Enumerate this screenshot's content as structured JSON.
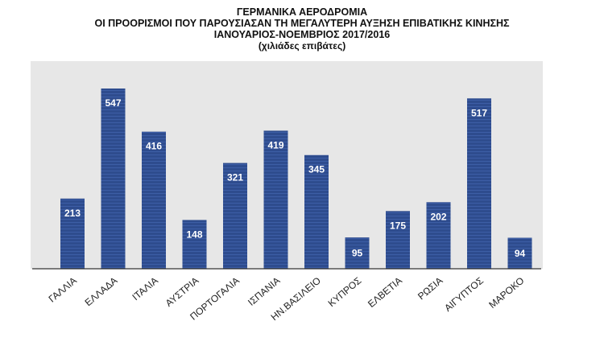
{
  "title": {
    "line1": "ΓΕΡΜΑΝΙΚΑ ΑΕΡΟΔΡΟΜΙΑ",
    "line2": "ΟΙ ΠΡΟΟΡΙΣΜΟΙ ΠΟΥ ΠΑΡΟΥΣΙΑΣΑΝ ΤΗ ΜΕΓΑΛΥΤΕΡΗ ΑΥΞΗΣΗ ΕΠΙΒΑΤΙΚΗΣ ΚΙΝΗΣΗΣ",
    "line3": "ΙΑΝΟΥΑΡΙΟΣ-ΝΟΕΜΒΡΙΟΣ 2017/2016",
    "line4": "(χιλιάδες επιβάτες)"
  },
  "chart_data": {
    "type": "bar",
    "title": "ΓΕΡΜΑΝΙΚΑ ΑΕΡΟΔΡΟΜΙΑ ΟΙ ΠΡΟΟΡΙΣΜΟΙ ΠΟΥ ΠΑΡΟΥΣΙΑΣΑΝ ΤΗ ΜΕΓΑΛΥΤΕΡΗ ΑΥΞΗΣΗ ΕΠΙΒΑΤΙΚΗΣ ΚΙΝΗΣΗΣ ΙΑΝΟΥΑΡΙΟΣ-ΝΟΕΜΒΡΙΟΣ 2017/2016",
    "subtitle": "(χιλιάδες επιβάτες)",
    "categories": [
      "ΓΑΛΛΙΑ",
      "ΕΛΛΑΔΑ",
      "ΙΤΑΛΙΑ",
      "ΑΥΣΤΡΙΑ",
      "ΠΟΡΤΟΓΑΛΙΑ",
      "ΙΣΠΑΝΙΑ",
      "ΗΝ.ΒΑΣΙΛΕΙΟ",
      "ΚΥΠΡΟΣ",
      "ΕΛΒΕΤΙΑ",
      "ΡΩΣΙΑ",
      "ΑΙΓΥΠΤΟΣ",
      "ΜΑΡΟΚΟ"
    ],
    "values": [
      213,
      547,
      416,
      148,
      321,
      419,
      345,
      95,
      175,
      202,
      517,
      94
    ],
    "data_labels": [
      "213",
      "547",
      "416",
      "148",
      "321",
      "419",
      "345",
      "95",
      "175",
      "202",
      "517",
      "94"
    ],
    "xlabel": "",
    "ylabel": "",
    "ylim": [
      0,
      560
    ],
    "grid": false,
    "legend": "none",
    "colors": {
      "bar": "#2e4c8e",
      "bar_stripe": "#3d5ea6",
      "plot_background": "#e7e7e7",
      "axis": "#333333"
    }
  }
}
